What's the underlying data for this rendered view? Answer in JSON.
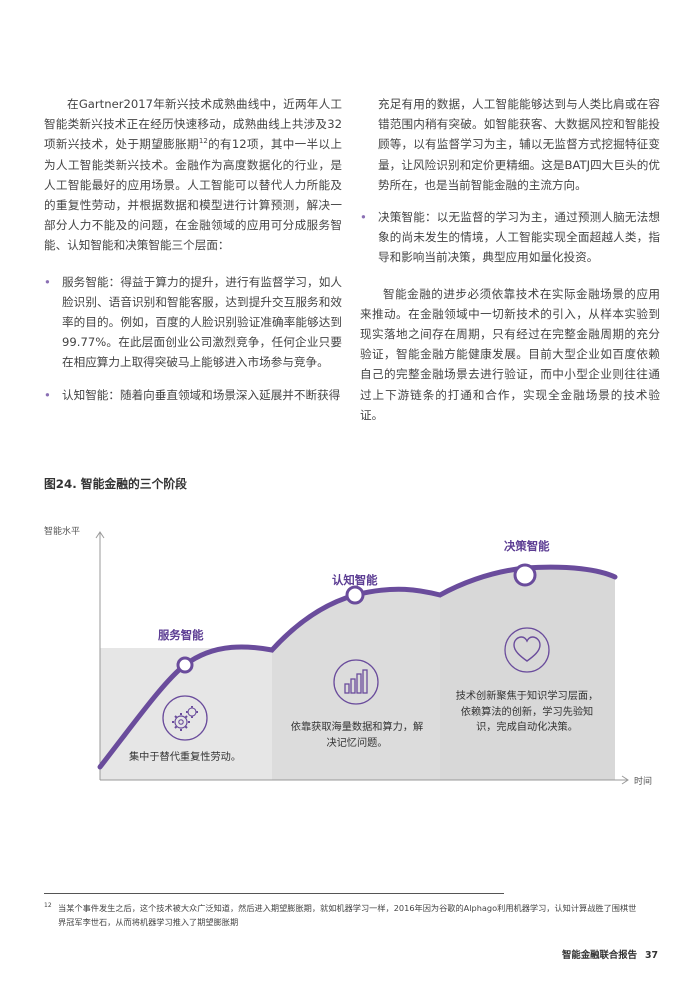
{
  "left_column": {
    "intro": [
      "在Gartner2017年新兴技术成熟曲线中，近两年人工智能类新兴技术正在经历快速移动，成熟曲线上共涉及32项新兴技术，处于期望膨胀期",
      "的有12项，其中一半以上为人工智能类新兴技术。金融作为高度数据化的行业，是人工智能最好的应用场景。人工智能可以替代人力所能及的重复性劳动，并根据数据和模型进行计算预测，解决一部分人力不能及的问题，在金融领域的应用可分成服务智能、认知智能和决策智能三个层面："
    ],
    "footnote_ref": "12",
    "bullet1": "服务智能：得益于算力的提升，进行有监督学习，如人脸识别、语音识别和智能客服，达到提升交互服务和效率的目的。例如，百度的人脸识别验证准确率能够达到99.77%。在此层面创业公司激烈竞争，任何企业只要在相应算力上取得突破马上能够进入市场参与竞争。",
    "bullet2": "认知智能：随着向垂直领域和场景深入延展并不断获得"
  },
  "right_column": {
    "bullet2_cont": "充足有用的数据，人工智能能够达到与人类比肩或在容错范围内稍有突破。如智能获客、大数据风控和智能投顾等，以有监督学习为主，辅以无监督方式挖掘特征变量，让风险识别和定价更精细。这是BATJ四大巨头的优势所在，也是当前智能金融的主流方向。",
    "bullet3": "决策智能：以无监督的学习为主，通过预测人脑无法想象的尚未发生的情境，人工智能实现全面超越人类，指导和影响当前决策，典型应用如量化投资。",
    "closing": "智能金融的进步必须依靠技术在实际金融场景的应用来推动。在金融领域中一切新技术的引入，从样本实验到现实落地之间存在周期，只有经过在完整金融周期的充分验证，智能金融方能健康发展。目前大型企业如百度依赖自己的完整金融场景去进行验证，而中小型企业则往往通过上下游链条的打通和合作，实现全金融场景的技术验证。"
  },
  "figure": {
    "title": "图24. 智能金融的三个阶段",
    "y_axis_label": "智能水平",
    "x_axis_label": "时间",
    "stages": [
      {
        "name": "服务智能",
        "description": "集中于替代重复性劳动。",
        "icon": "gears-icon"
      },
      {
        "name": "认知智能",
        "description": "依靠获取海量数据和算力，解决记忆问题。",
        "icon": "bar-chart-icon"
      },
      {
        "name": "决策智能",
        "description": "技术创新聚焦于知识学习层面，依赖算法的创新，学习先验知识，完成自动化决策。",
        "icon": "heart-icon"
      }
    ],
    "colors": {
      "curve": "#6a4c9c",
      "fill": "#e6e6e6",
      "box": "#dcdcdc",
      "label": "#5c3d93"
    }
  },
  "footnote": {
    "number": "12",
    "text": "当某个事件发生之后，这个技术被大众广泛知道，然后进入期望膨胀期，就如机器学习一样，2016年因为谷歌的Alphago利用机器学习，认知计算战胜了围棋世界冠军李世石，从而将机器学习推入了期望膨胀期"
  },
  "page_footer": {
    "title": "智能金融联合报告",
    "page": "37"
  }
}
